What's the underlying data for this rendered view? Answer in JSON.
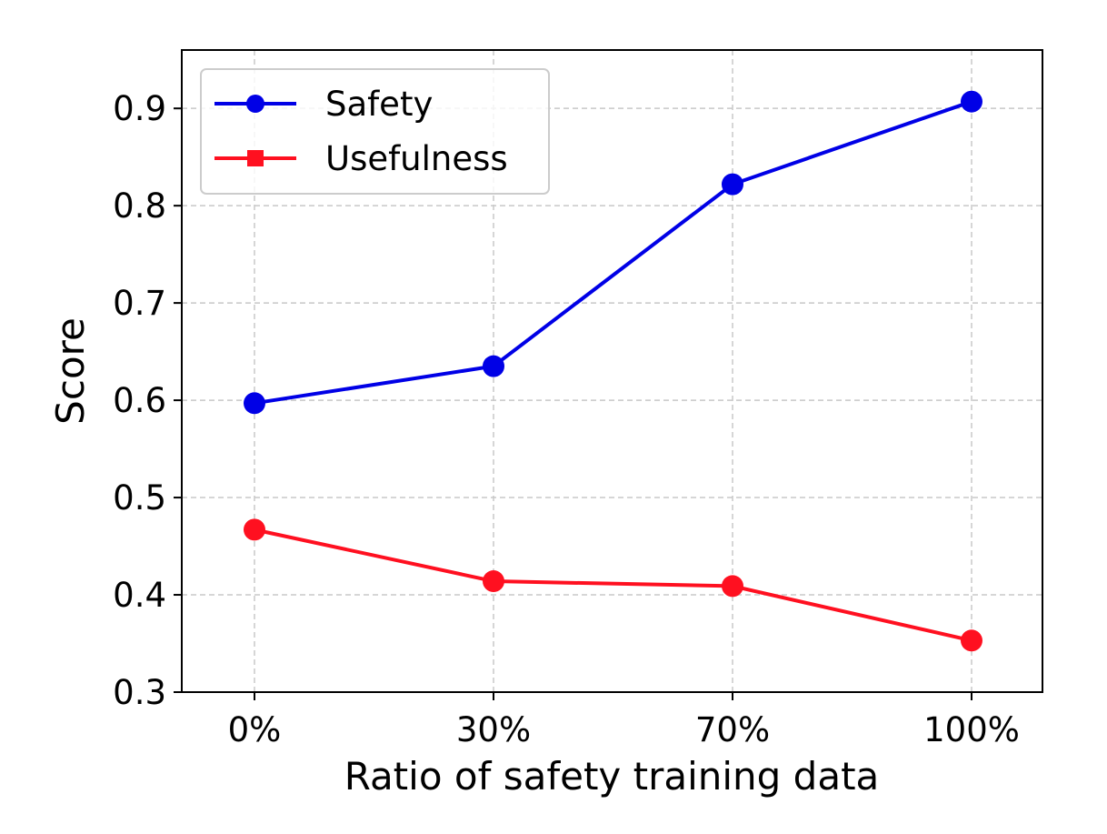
{
  "chart_data": {
    "type": "line",
    "categories": [
      "0%",
      "30%",
      "70%",
      "100%"
    ],
    "xlabel": "Ratio of safety training data",
    "ylabel": "Score",
    "ylim": [
      0.3,
      0.96
    ],
    "yticks": [
      0.3,
      0.4,
      0.5,
      0.6,
      0.7,
      0.8,
      0.9
    ],
    "ytick_labels": [
      "0.3",
      "0.4",
      "0.5",
      "0.6",
      "0.7",
      "0.8",
      "0.9"
    ],
    "grid": true,
    "legend_position": "top-left",
    "series": [
      {
        "name": "Safety",
        "values": [
          0.597,
          0.635,
          0.822,
          0.907
        ],
        "color": "#0000e6",
        "legend_marker": "circle",
        "marker": "circle"
      },
      {
        "name": "Usefulness",
        "values": [
          0.467,
          0.414,
          0.409,
          0.353
        ],
        "color": "#ff1020",
        "legend_marker": "square",
        "marker": "circle"
      }
    ]
  }
}
